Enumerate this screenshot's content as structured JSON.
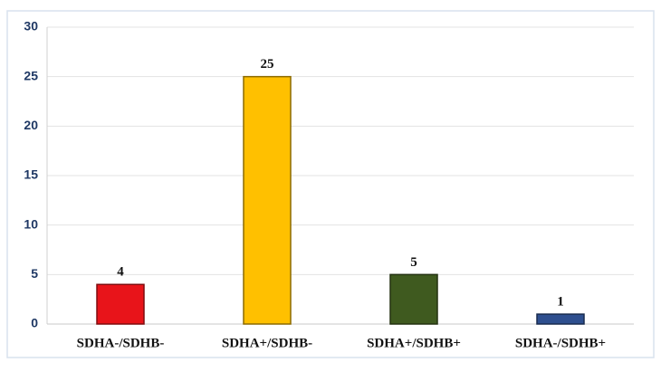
{
  "chart_data": {
    "type": "bar",
    "categories": [
      "SDHA-/SDHB-",
      "SDHA+/SDHB-",
      "SDHA+/SDHB+",
      "SDHA-/SDHB+"
    ],
    "values": [
      4,
      25,
      5,
      1
    ],
    "colors": [
      "#e8141a",
      "#ffc000",
      "#3f5a1f",
      "#2e4f8f"
    ],
    "ylim": [
      0,
      30
    ],
    "yticks": [
      0,
      5,
      10,
      15,
      20,
      25,
      30
    ],
    "grid": true
  }
}
